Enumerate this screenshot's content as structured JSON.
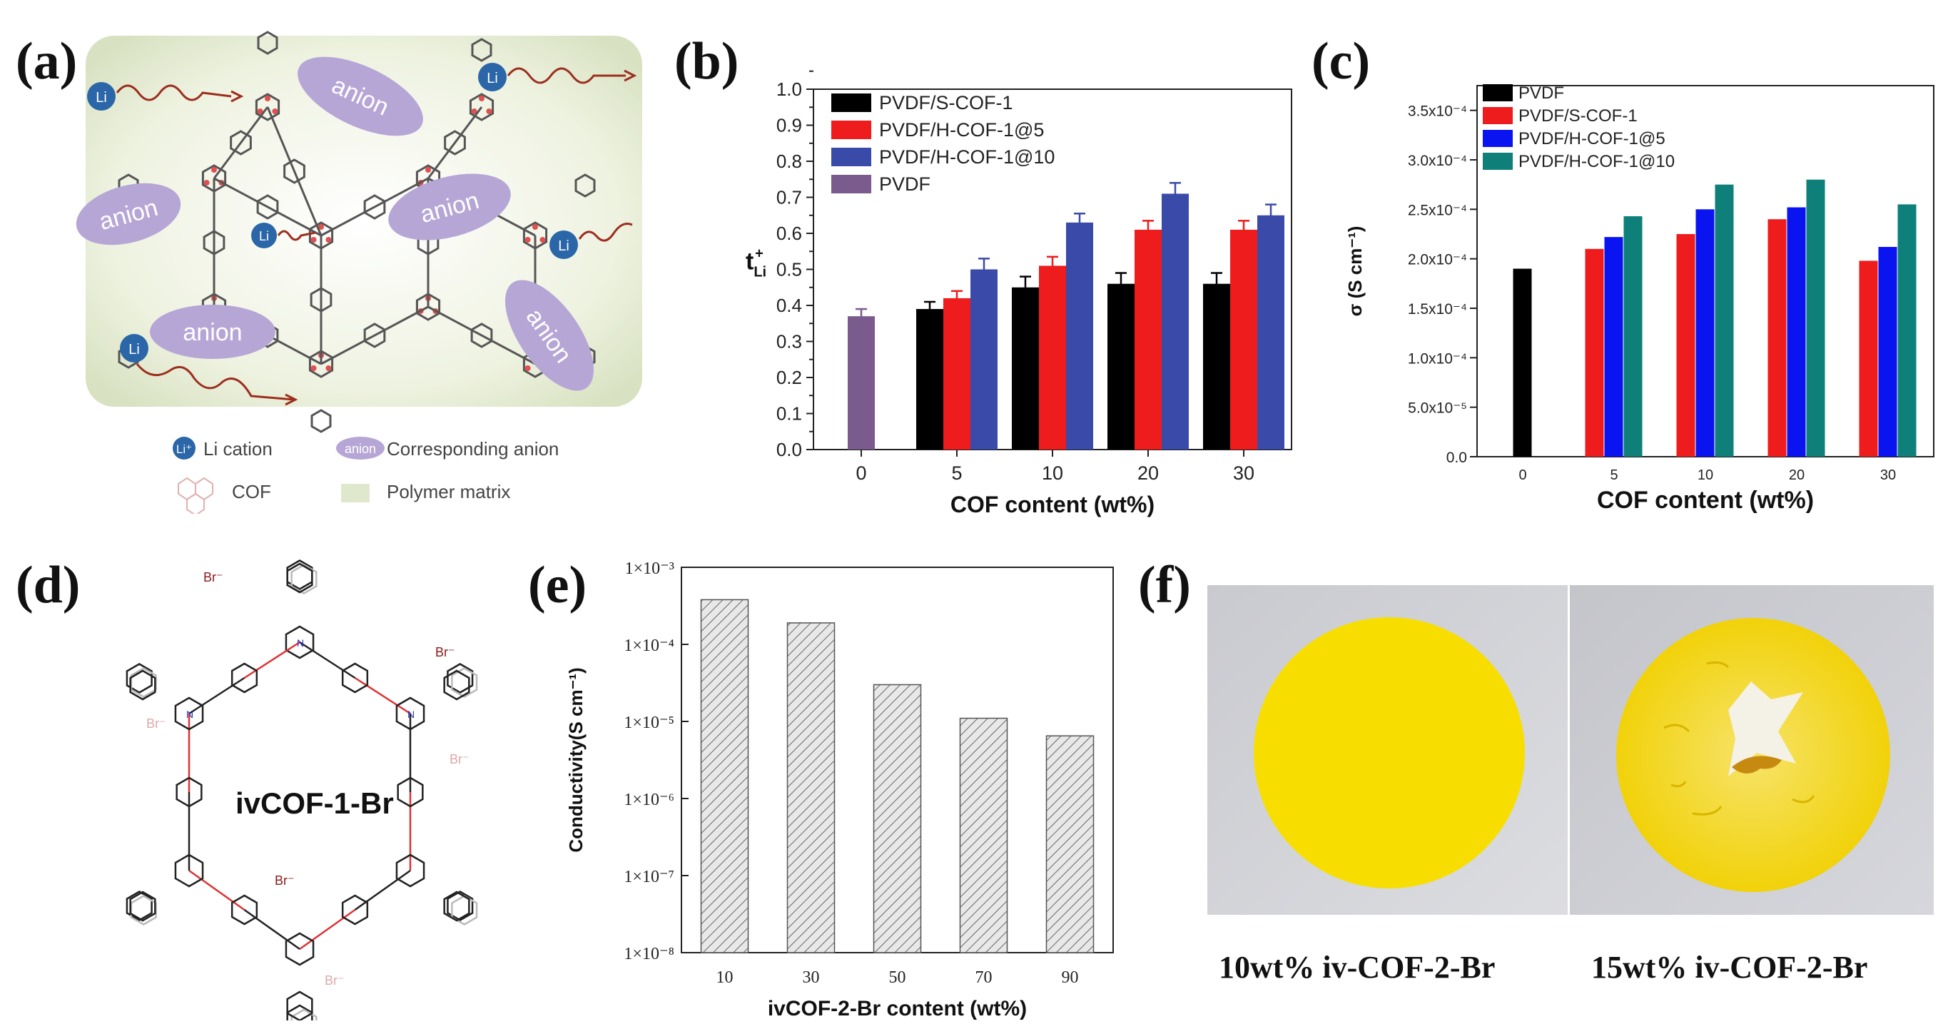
{
  "panels": {
    "a": {
      "label": "(a)",
      "bubble_anion": "anion",
      "bubble_li": "Li",
      "bubble_li_sup": "Li⁺",
      "legend": {
        "li_icon": "Li⁺",
        "li_text": "Li cation",
        "anion_icon": "anion",
        "anion_text": "Corresponding anion",
        "cof_text": "COF",
        "polymer_text": "Polymer matrix"
      }
    },
    "b": {
      "label": "(b)"
    },
    "c": {
      "label": "(c)"
    },
    "d": {
      "label": "(d)",
      "center_text": "ivCOF-1-Br",
      "br_label": "Br⁻",
      "n_label": "N"
    },
    "e": {
      "label": "(e)"
    },
    "f": {
      "label": "(f)",
      "caption_left": "10wt% iv-COF-2-Br",
      "caption_right": "15wt% iv-COF-2-Br"
    }
  },
  "colors": {
    "black": "#000000",
    "red": "#ee1c1c",
    "blue": "#3a4aa8",
    "purple": "#7b5a8e",
    "blue_c": "#0a14f0",
    "teal": "#0e7f79",
    "yellow": "#f7de00",
    "lavender": "#b6a6d6",
    "li_blue": "#2a66a8"
  },
  "chart_data": [
    {
      "id": "b",
      "type": "bar",
      "categories": [
        "0",
        "5",
        "10",
        "20",
        "30"
      ],
      "xlabel": "COF content (wt%)",
      "ylabel": "t",
      "ylabel_sub": "Li",
      "ylabel_sup": "+",
      "ylim": [
        0.0,
        1.0
      ],
      "yticks": [
        "0.0",
        "0.1",
        "0.2",
        "0.3",
        "0.4",
        "0.5",
        "0.6",
        "0.7",
        "0.8",
        "0.9",
        "1.0"
      ],
      "legend_position": "top-left",
      "series": [
        {
          "name": "PVDF/S-COF-1",
          "color": "#000000",
          "values": [
            null,
            0.39,
            0.45,
            0.46,
            0.46
          ],
          "errors": [
            null,
            0.02,
            0.03,
            0.03,
            0.03
          ]
        },
        {
          "name": "PVDF/H-COF-1@5",
          "color": "#ee1c1c",
          "values": [
            null,
            0.42,
            0.51,
            0.61,
            0.61
          ],
          "errors": [
            null,
            0.02,
            0.025,
            0.025,
            0.025
          ]
        },
        {
          "name": "PVDF/H-COF-1@10",
          "color": "#3a4aa8",
          "values": [
            null,
            0.5,
            0.63,
            0.71,
            0.65
          ],
          "errors": [
            null,
            0.03,
            0.025,
            0.03,
            0.03
          ]
        },
        {
          "name": "PVDF",
          "color": "#7b5a8e",
          "values": [
            0.37,
            null,
            null,
            null,
            null
          ],
          "errors": [
            0.02,
            null,
            null,
            null,
            null
          ]
        }
      ]
    },
    {
      "id": "c",
      "type": "bar",
      "categories": [
        "0",
        "5",
        "10",
        "20",
        "30"
      ],
      "xlabel": "COF content (wt%)",
      "ylabel": "σ (S cm⁻¹)",
      "ylim": [
        0.0,
        0.000375
      ],
      "yticks": [
        "0.0",
        "5.0x10⁻⁵",
        "1.0x10⁻⁴",
        "1.5x10⁻⁴",
        "2.0x10⁻⁴",
        "2.5x10⁻⁴",
        "3.0x10⁻⁴",
        "3.5x10⁻⁴"
      ],
      "legend_position": "top-left",
      "series": [
        {
          "name": "PVDF",
          "color": "#000000",
          "values": [
            0.00019,
            null,
            null,
            null,
            null
          ]
        },
        {
          "name": "PVDF/S-COF-1",
          "color": "#ee1c1c",
          "values": [
            null,
            0.00021,
            0.000225,
            0.00024,
            0.000198
          ]
        },
        {
          "name": "PVDF/H-COF-1@5",
          "color": "#0a14f0",
          "values": [
            null,
            0.000222,
            0.00025,
            0.000252,
            0.000212
          ]
        },
        {
          "name": "PVDF/H-COF-1@10",
          "color": "#0e7f79",
          "values": [
            null,
            0.000243,
            0.000275,
            0.00028,
            0.000255
          ]
        }
      ]
    },
    {
      "id": "e",
      "type": "bar",
      "categories": [
        "10",
        "30",
        "50",
        "70",
        "90"
      ],
      "xlabel": "ivCOF-2-Br content (wt%)",
      "ylabel": "Conductivity(S cm⁻¹)",
      "yscale": "log",
      "ylim": [
        1e-08,
        0.001
      ],
      "yticks": [
        "1×10⁻³",
        "1×10⁻⁴",
        "1×10⁻⁵",
        "1×10⁻⁶",
        "1×10⁻⁷",
        "1×10⁻⁸"
      ],
      "series": [
        {
          "name": "",
          "pattern": "hatched",
          "values": [
            0.00038,
            0.00019,
            3e-05,
            1.1e-05,
            6.5e-06
          ]
        }
      ]
    }
  ]
}
